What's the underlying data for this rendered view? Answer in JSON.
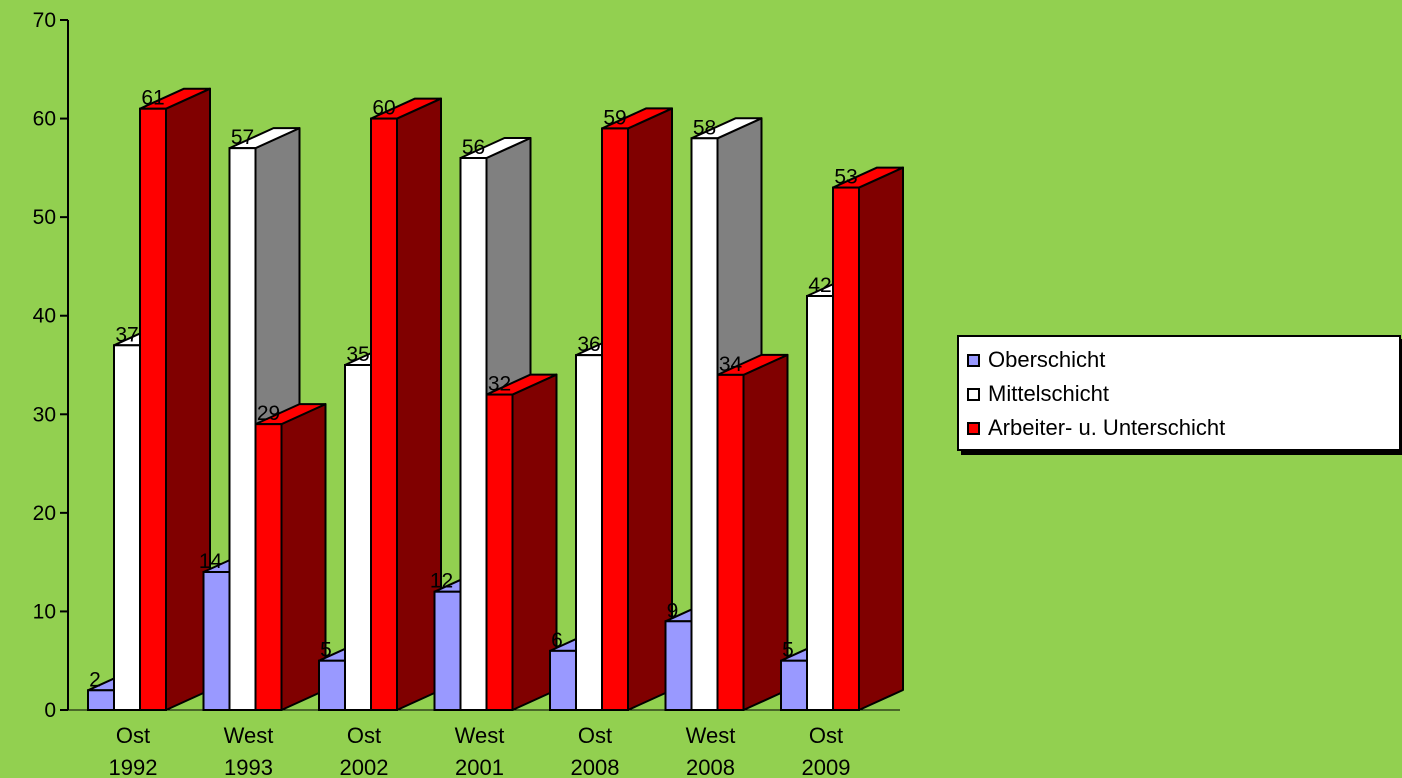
{
  "chart_data": {
    "type": "bar",
    "categories": [
      "Ost\n1992",
      "West\n1993",
      "Ost\n2002",
      "West\n2001",
      "Ost\n2008",
      "West\n2008",
      "Ost\n2009"
    ],
    "series": [
      {
        "name": "Oberschicht",
        "values": [
          2,
          14,
          5,
          12,
          6,
          9,
          5
        ],
        "color": "#9999ff",
        "side_color": "#4d4d99"
      },
      {
        "name": "Mittelschicht",
        "values": [
          37,
          57,
          35,
          56,
          36,
          58,
          42
        ],
        "color": "#ffffff",
        "side_color": "#808080"
      },
      {
        "name": "Arbeiter- u. Unterschicht",
        "values": [
          61,
          29,
          60,
          32,
          59,
          34,
          53
        ],
        "color": "#ff0000",
        "side_color": "#800000"
      }
    ],
    "y_ticks": [
      0,
      10,
      20,
      30,
      40,
      50,
      60,
      70
    ],
    "ylim": [
      0,
      70
    ],
    "grid": false,
    "legend_position": "right",
    "background": "#92d050"
  }
}
